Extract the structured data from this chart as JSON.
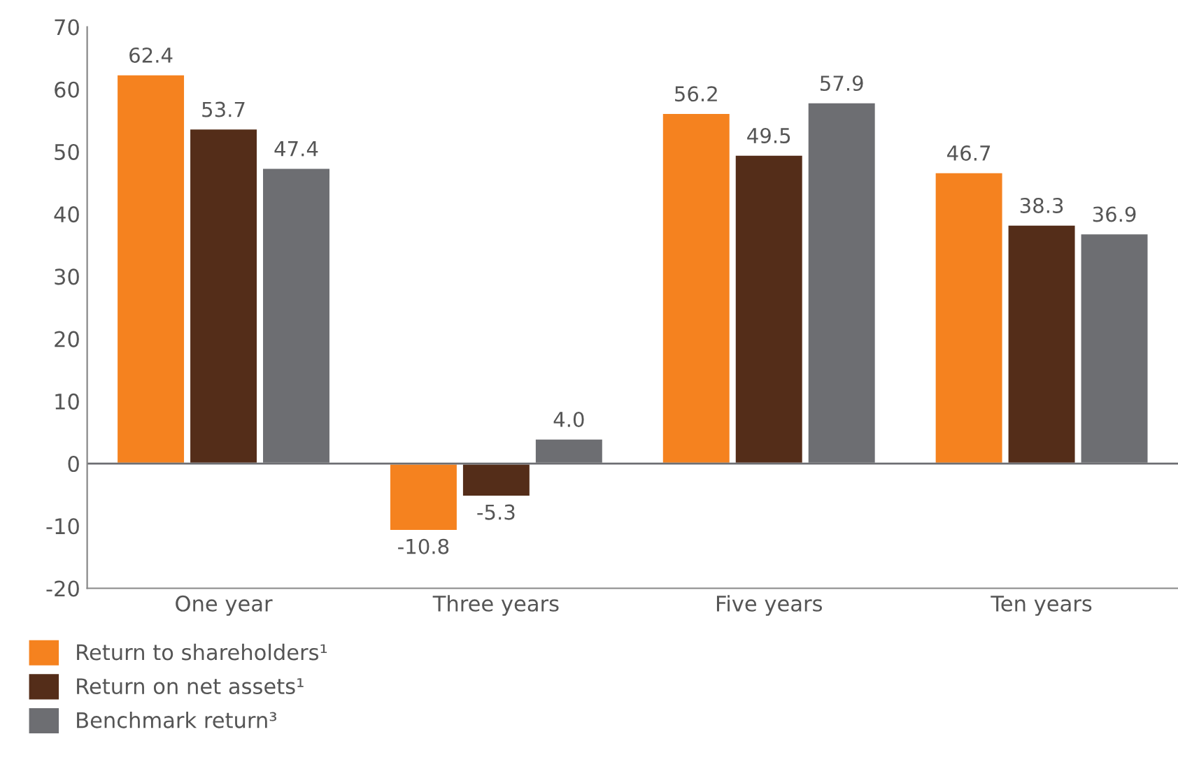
{
  "chart_data": {
    "type": "bar",
    "categories": [
      "One year",
      "Three years",
      "Five years",
      "Ten years"
    ],
    "series": [
      {
        "name": "Return to shareholders¹",
        "color": "#f5821f",
        "values": [
          62.4,
          -10.8,
          56.2,
          46.7
        ],
        "value_labels": [
          "62.4",
          "-10.8",
          "56.2",
          "46.7"
        ]
      },
      {
        "name": "Return on net assets¹",
        "color": "#542d19",
        "values": [
          53.7,
          -5.3,
          49.5,
          38.3
        ],
        "value_labels": [
          "53.7",
          "-5.3",
          "49.5",
          "38.3"
        ]
      },
      {
        "name": "Benchmark return³",
        "color": "#6d6e72",
        "values": [
          47.4,
          4.0,
          57.9,
          36.9
        ],
        "value_labels": [
          "47.4",
          "4.0",
          "57.9",
          "36.9"
        ]
      }
    ],
    "ylim": [
      -20,
      70
    ],
    "yticks": [
      -20,
      -10,
      0,
      10,
      20,
      30,
      40,
      50,
      60,
      70
    ],
    "ref_lines": [
      {
        "axis": "y",
        "value": 0,
        "color": "#6d6e72"
      }
    ],
    "grid": false,
    "legend": "bottom"
  }
}
